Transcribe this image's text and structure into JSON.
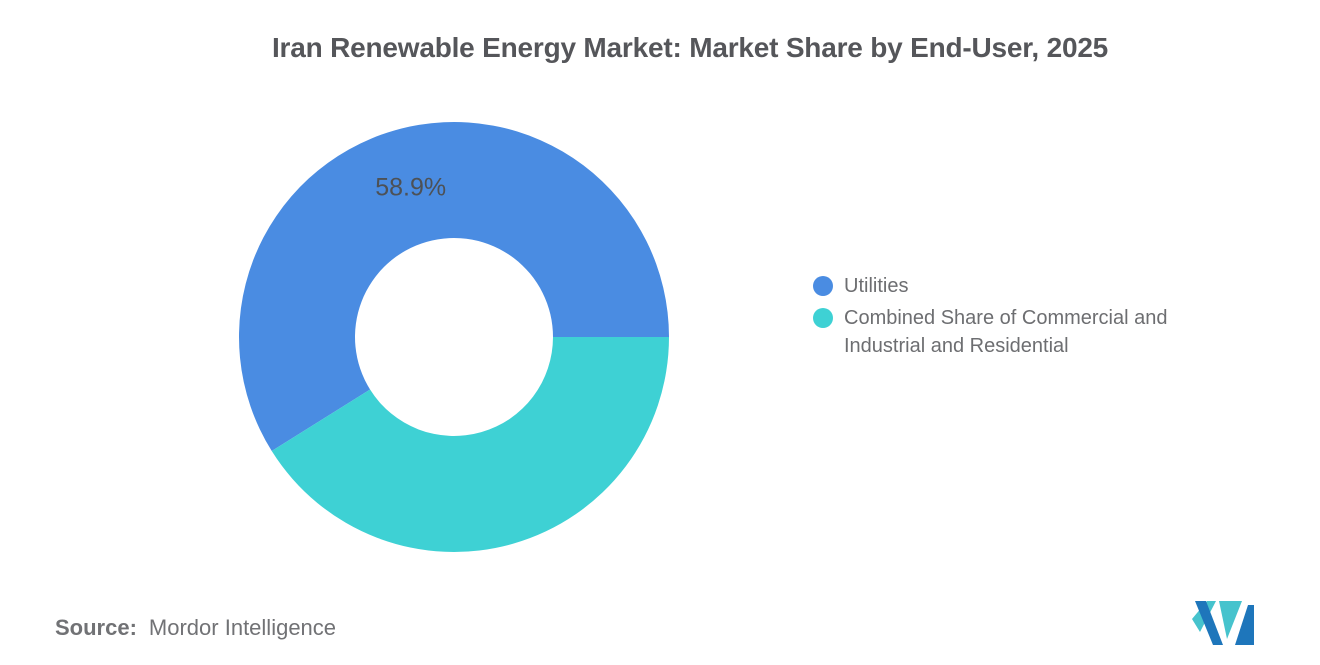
{
  "chart_data": {
    "type": "pie",
    "donut": true,
    "title": "Iran Renewable Energy Market: Market Share by End-User, 2025",
    "legend_position": "right",
    "start_angle": "3-oclock",
    "direction": "counterclockwise",
    "series": [
      {
        "name": "Utilities",
        "value": 58.9,
        "label": "58.9%",
        "color": "#4A8CE2"
      },
      {
        "name": "Combined Share of Commercial and Industrial and Residential",
        "value": 41.1,
        "label": "",
        "color": "#3ED1D4"
      }
    ]
  },
  "source": {
    "label": "Source:",
    "value": "Mordor Intelligence"
  },
  "logo": {
    "name": "mordor-intelligence-logo",
    "teal": "#46C3CD",
    "blue": "#1E76BB"
  }
}
